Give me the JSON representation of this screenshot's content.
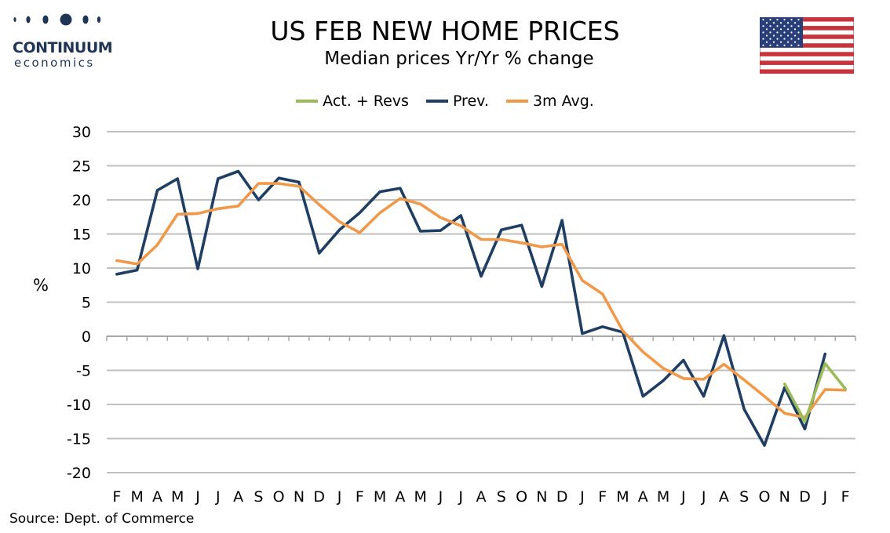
{
  "logo": {
    "name": "CONTINUUM",
    "sub": "economics"
  },
  "header": {
    "title": "US FEB NEW HOME PRICES",
    "subtitle": "Median prices Yr/Yr % change"
  },
  "flag_icon": "us-flag-icon",
  "source": "Source: Dept. of Commerce",
  "colors": {
    "act": "#9bbb59",
    "prev": "#1f3e64",
    "avg": "#f0994a",
    "grid": "#c0c0c0",
    "logo": "#1f3556"
  },
  "chart_data": {
    "type": "line",
    "title": "US FEB NEW HOME PRICES",
    "subtitle": "Median prices Yr/Yr % change",
    "ylabel": "%",
    "xlabel": "",
    "ylim": [
      -20,
      30
    ],
    "yticks": [
      30,
      25,
      20,
      15,
      10,
      5,
      0,
      -5,
      -10,
      -15,
      -20
    ],
    "grid": true,
    "legend_position": "top-center",
    "categories": [
      "F",
      "M",
      "A",
      "M",
      "J",
      "J",
      "A",
      "S",
      "O",
      "N",
      "D",
      "J",
      "F",
      "M",
      "A",
      "M",
      "J",
      "J",
      "A",
      "S",
      "O",
      "N",
      "D",
      "J",
      "F",
      "M",
      "A",
      "M",
      "J",
      "J",
      "A",
      "S",
      "O",
      "N",
      "D",
      "J",
      "F"
    ],
    "series": [
      {
        "name": "Act. + Revs",
        "color": "#9bbb59",
        "values": [
          null,
          null,
          null,
          null,
          null,
          null,
          null,
          null,
          null,
          null,
          null,
          null,
          null,
          null,
          null,
          null,
          null,
          null,
          null,
          null,
          null,
          null,
          null,
          null,
          null,
          null,
          null,
          null,
          null,
          null,
          null,
          null,
          null,
          -7.0,
          -12.5,
          -4.0,
          -7.7
        ]
      },
      {
        "name": "Prev.",
        "color": "#1f3e64",
        "values": [
          9.1,
          9.7,
          21.4,
          23.1,
          9.9,
          23.1,
          24.2,
          20.0,
          23.2,
          22.6,
          12.2,
          15.6,
          18.1,
          21.2,
          21.7,
          15.4,
          15.5,
          17.7,
          8.8,
          15.6,
          16.3,
          7.3,
          17.0,
          0.4,
          1.4,
          0.6,
          -8.8,
          -6.5,
          -3.5,
          -8.8,
          0.1,
          -10.7,
          -16.0,
          -7.5,
          -13.6,
          -2.6,
          null
        ]
      },
      {
        "name": "3m Avg.",
        "color": "#f0994a",
        "values": [
          11.1,
          10.6,
          13.4,
          17.9,
          18.0,
          18.7,
          19.1,
          22.4,
          22.4,
          22.0,
          19.3,
          16.8,
          15.2,
          18.1,
          20.2,
          19.4,
          17.4,
          16.2,
          14.2,
          14.2,
          13.7,
          13.1,
          13.5,
          8.2,
          6.2,
          0.8,
          -2.3,
          -4.7,
          -6.2,
          -6.3,
          -4.1,
          -6.4,
          -8.8,
          -11.3,
          -11.9,
          -7.8,
          -7.9
        ]
      }
    ]
  }
}
